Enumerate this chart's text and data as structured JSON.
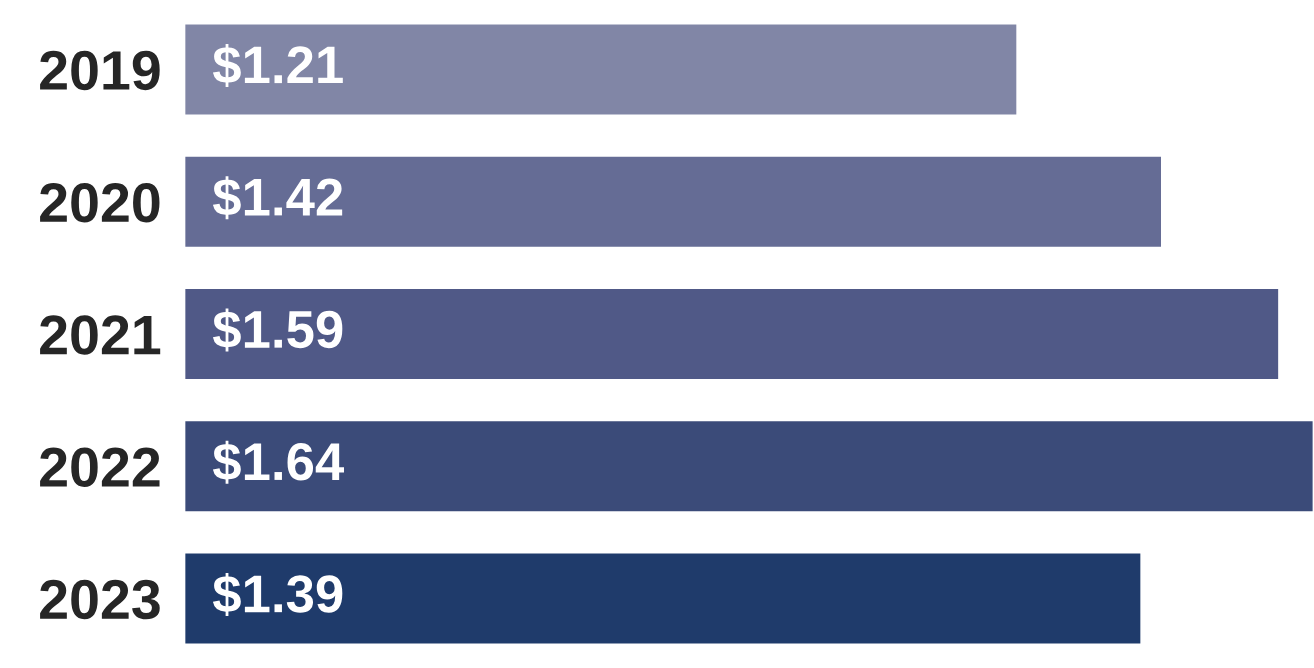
{
  "chart_data": {
    "type": "bar",
    "orientation": "horizontal",
    "categories": [
      "2019",
      "2020",
      "2021",
      "2022",
      "2023"
    ],
    "values": [
      1.21,
      1.42,
      1.59,
      1.64,
      1.39
    ],
    "value_labels": [
      "$1.21",
      "$1.42",
      "$1.59",
      "$1.64",
      "$1.39"
    ],
    "colors": [
      "#8186a6",
      "#656c95",
      "#505987",
      "#3b4b79",
      "#1f3b6b"
    ],
    "grid": false,
    "legend": false,
    "tick_labels": "y"
  }
}
